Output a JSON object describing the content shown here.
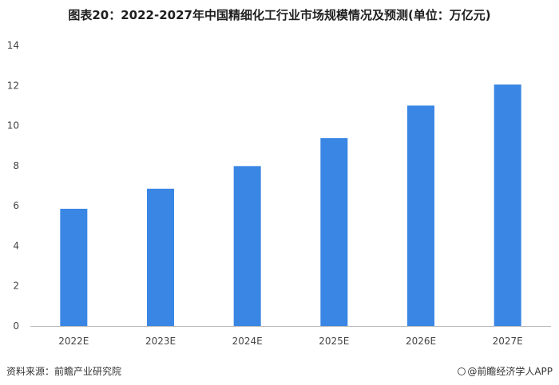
{
  "title": "图表20：2022-2027年中国精细化工行业市场规模情况及预测(单位：万亿元)",
  "source": "资料来源：前瞻产业研究院",
  "credit": "@前瞻经济学人APP",
  "colors": {
    "bar": "#3a86e4",
    "axis": "#bbbbbb"
  },
  "chart_data": {
    "type": "bar",
    "title": "图表20：2022-2027年中国精细化工行业市场规模情况及预测(单位：万亿元)",
    "categories": [
      "2022E",
      "2023E",
      "2024E",
      "2025E",
      "2026E",
      "2027E"
    ],
    "values": [
      5.85,
      6.85,
      7.98,
      9.38,
      11.0,
      12.05
    ],
    "xlabel": "",
    "ylabel": "",
    "ylim": [
      0,
      14
    ],
    "yticks": [
      0,
      2,
      4,
      6,
      8,
      10,
      12,
      14
    ],
    "grid": false,
    "legend": "none"
  }
}
